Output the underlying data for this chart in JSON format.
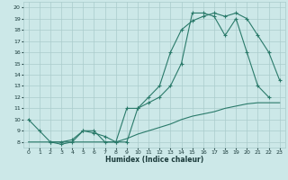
{
  "xlabel": "Humidex (Indice chaleur)",
  "bg_color": "#cce8e8",
  "grid_color": "#aacccc",
  "line_color": "#2a7a6a",
  "xlim": [
    -0.5,
    23.5
  ],
  "ylim": [
    7.5,
    20.5
  ],
  "xticks": [
    0,
    1,
    2,
    3,
    4,
    5,
    6,
    7,
    8,
    9,
    10,
    11,
    12,
    13,
    14,
    15,
    16,
    17,
    18,
    19,
    20,
    21,
    22,
    23
  ],
  "yticks": [
    8,
    9,
    10,
    11,
    12,
    13,
    14,
    15,
    16,
    17,
    18,
    19,
    20
  ],
  "line1_x": [
    0,
    1,
    2,
    3,
    4,
    5,
    6,
    7,
    8,
    9,
    10,
    11,
    12,
    13,
    14,
    15,
    16,
    17,
    18,
    19,
    20,
    21,
    22,
    23
  ],
  "line1_y": [
    10,
    9,
    8,
    7.8,
    8,
    9,
    9,
    8,
    8,
    11,
    11,
    12,
    13,
    16,
    18,
    18.8,
    19.2,
    19.5,
    19.2,
    19.5,
    19,
    17.5,
    16,
    13.5
  ],
  "line2_x": [
    0,
    1,
    2,
    3,
    4,
    5,
    6,
    7,
    8,
    9,
    10,
    11,
    12,
    13,
    14,
    15,
    16,
    17,
    18,
    19,
    20,
    21,
    22,
    23
  ],
  "line2_y": [
    8,
    8,
    8,
    8,
    8,
    8,
    8,
    8,
    8,
    8.3,
    8.7,
    9.0,
    9.3,
    9.6,
    10.0,
    10.3,
    10.5,
    10.7,
    11.0,
    11.2,
    11.4,
    11.5,
    11.5,
    11.5
  ],
  "line3_x": [
    2,
    3,
    4,
    5,
    6,
    7,
    8,
    9,
    10,
    11,
    12,
    13,
    14,
    15,
    16,
    17,
    18,
    19,
    20,
    21,
    22
  ],
  "line3_y": [
    8,
    8,
    8.2,
    9,
    8.8,
    8.5,
    8,
    8,
    11,
    11.5,
    12,
    13,
    15,
    19.5,
    19.5,
    19.2,
    17.5,
    19,
    16,
    13,
    12
  ]
}
